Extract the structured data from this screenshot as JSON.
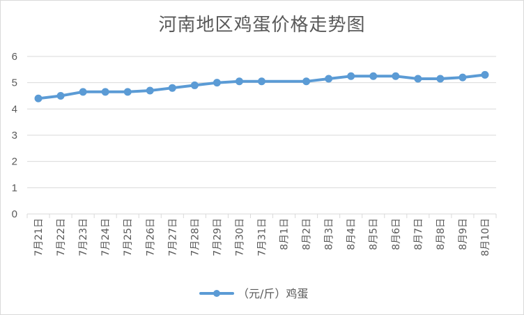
{
  "chart_data": {
    "type": "line",
    "title": "河南地区鸡蛋价格走势图",
    "categories": [
      "7月21日",
      "7月22日",
      "7月23日",
      "7月24日",
      "7月25日",
      "7月26日",
      "7月27日",
      "7月28日",
      "7月29日",
      "7月30日",
      "7月31日",
      "8月1日",
      "8月2日",
      "8月3日",
      "8月4日",
      "8月5日",
      "8月6日",
      "8月7日",
      "8月8日",
      "8月9日",
      "8月10日"
    ],
    "series": [
      {
        "name": "（元/斤）鸡蛋",
        "values": [
          4.4,
          4.5,
          4.65,
          4.65,
          4.65,
          4.7,
          4.8,
          4.9,
          5.0,
          5.05,
          5.05,
          null,
          5.05,
          5.15,
          5.25,
          5.25,
          5.25,
          5.15,
          5.15,
          5.2,
          5.3
        ]
      }
    ],
    "ylim": [
      0,
      6
    ],
    "yticks": [
      "0",
      "1",
      "2",
      "3",
      "4",
      "5",
      "6"
    ],
    "grid": true,
    "legend": "bottom",
    "colors": {
      "line": "#5b9bd5",
      "grid": "#d9d9d9",
      "text": "#595959"
    }
  }
}
